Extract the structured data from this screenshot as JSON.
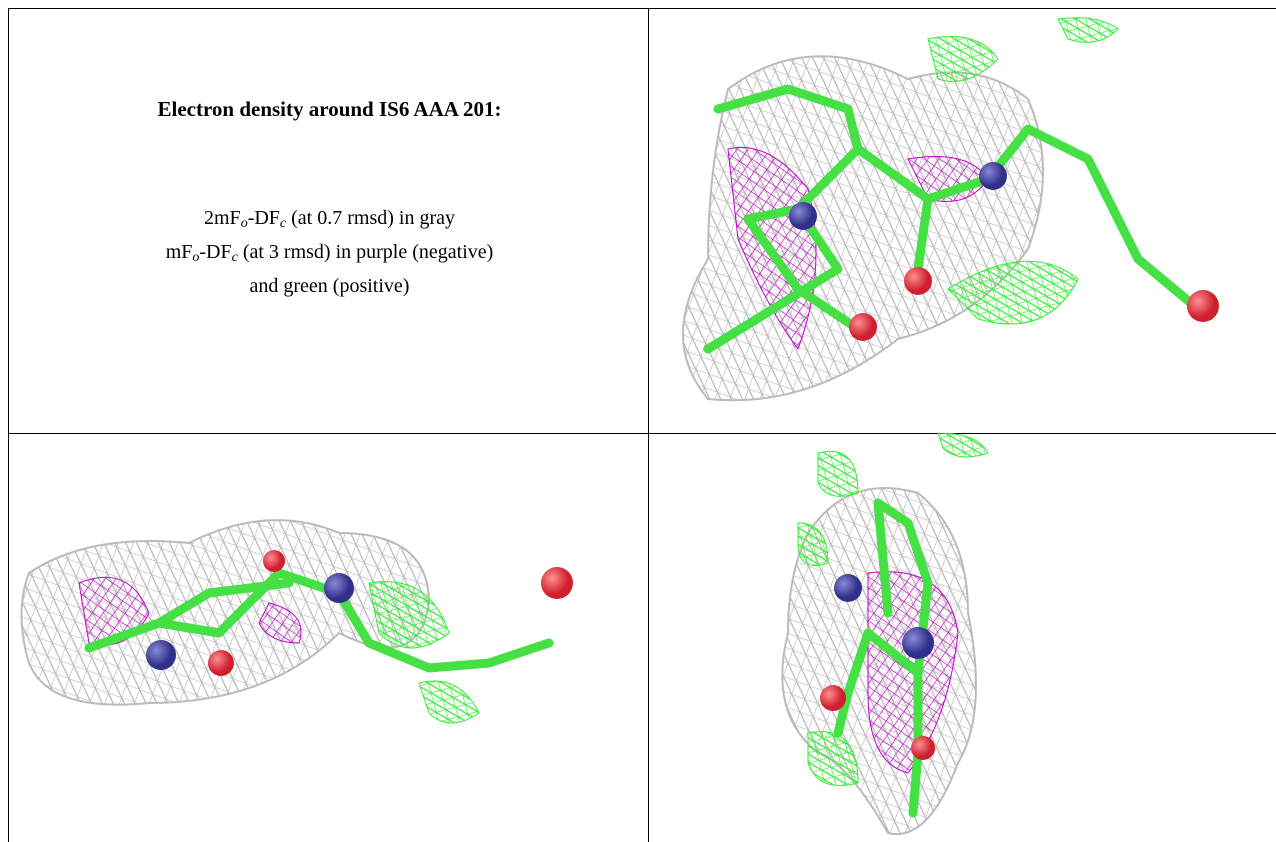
{
  "title": "Electron density around IS6 AAA 201:",
  "legend": [
    [
      "2mF",
      "o",
      "-DF",
      "c",
      " (at 0.7 rmsd) in gray"
    ],
    [
      "mF",
      "o",
      "-DF",
      "c",
      " (at 3 rmsd) in purple (negative)"
    ],
    [
      "and green (positive)"
    ]
  ]
}
